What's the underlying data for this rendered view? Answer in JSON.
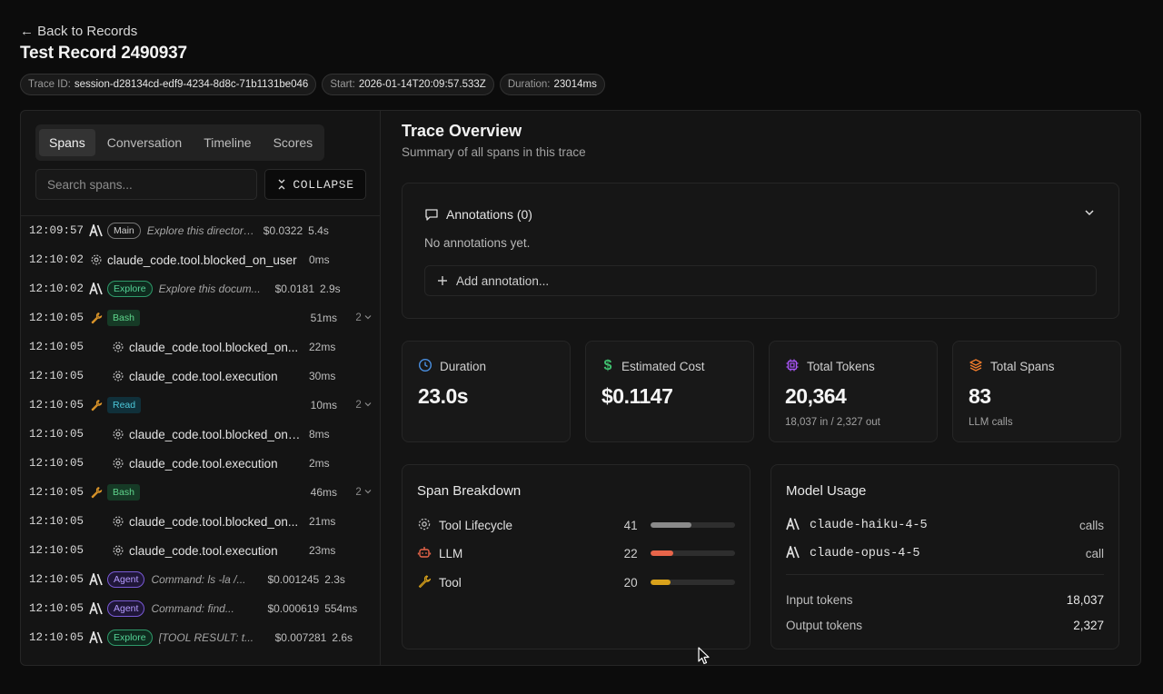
{
  "header": {
    "back_label": "← Back to Records",
    "title": "Test Record 2490937",
    "chips": [
      {
        "label": "Trace ID:",
        "value": "session-d28134cd-edf9-4234-8d8c-71b1131be046"
      },
      {
        "label": "Start:",
        "value": "2026-01-14T20:09:57.533Z"
      },
      {
        "label": "Duration:",
        "value": "23014ms"
      }
    ]
  },
  "left": {
    "tabs": [
      "Spans",
      "Conversation",
      "Timeline",
      "Scores"
    ],
    "search_placeholder": "Search spans...",
    "collapse_label": "COLLAPSE",
    "spans": [
      {
        "time": "12:09:57",
        "icon": "anthropic",
        "badge": "Main",
        "desc": "Explore this directory ...",
        "cost": "$0.0322",
        "dur": "5.4s"
      },
      {
        "time": "12:10:02",
        "icon": "gear",
        "name": "claude_code.tool.blocked_on_user",
        "dur": "0ms"
      },
      {
        "time": "12:10:02",
        "icon": "anthropic",
        "badge": "Explore",
        "desc": "Explore this docum...",
        "cost": "$0.0181",
        "dur": "2.9s"
      },
      {
        "time": "12:10:05",
        "icon": "wrench",
        "badge": "Bash",
        "dur": "51ms",
        "count": "2"
      },
      {
        "time": "12:10:05",
        "icon": "gear",
        "nested": true,
        "name": "claude_code.tool.blocked_on...",
        "dur": "22ms"
      },
      {
        "time": "12:10:05",
        "icon": "gear",
        "nested": true,
        "name": "claude_code.tool.execution",
        "dur": "30ms"
      },
      {
        "time": "12:10:05",
        "icon": "wrench",
        "badge": "Read",
        "dur": "10ms",
        "count": "2"
      },
      {
        "time": "12:10:05",
        "icon": "gear",
        "nested": true,
        "name": "claude_code.tool.blocked_on_...",
        "dur": "8ms"
      },
      {
        "time": "12:10:05",
        "icon": "gear",
        "nested": true,
        "name": "claude_code.tool.execution",
        "dur": "2ms"
      },
      {
        "time": "12:10:05",
        "icon": "wrench",
        "badge": "Bash",
        "dur": "46ms",
        "count": "2"
      },
      {
        "time": "12:10:05",
        "icon": "gear",
        "nested": true,
        "name": "claude_code.tool.blocked_on...",
        "dur": "21ms"
      },
      {
        "time": "12:10:05",
        "icon": "gear",
        "nested": true,
        "name": "claude_code.tool.execution",
        "dur": "23ms"
      },
      {
        "time": "12:10:05",
        "icon": "anthropic",
        "badge": "Agent",
        "desc": "Command: ls -la /...",
        "cost": "$0.001245",
        "dur": "2.3s"
      },
      {
        "time": "12:10:05",
        "icon": "anthropic",
        "badge": "Agent",
        "desc": "Command: find...",
        "cost": "$0.000619",
        "dur": "554ms"
      },
      {
        "time": "12:10:05",
        "icon": "anthropic",
        "badge": "Explore",
        "desc": "[TOOL RESULT: t...",
        "cost": "$0.007281",
        "dur": "2.6s"
      }
    ]
  },
  "overview": {
    "title": "Trace Overview",
    "subtitle": "Summary of all spans in this trace",
    "annotations_label": "Annotations (0)",
    "no_annotations": "No annotations yet.",
    "add_annotation": "Add annotation...",
    "stats": [
      {
        "label": "Duration",
        "value": "23.0s",
        "sub": "",
        "icon": "clock",
        "color": "#4a90e2"
      },
      {
        "label": "Estimated Cost",
        "value": "$0.1147",
        "sub": "",
        "icon": "dollar",
        "color": "#3fbf6e"
      },
      {
        "label": "Total Tokens",
        "value": "20,364",
        "sub": "18,037 in / 2,327 out",
        "icon": "chip",
        "color": "#a855f7"
      },
      {
        "label": "Total Spans",
        "value": "83",
        "sub": "LLM calls",
        "icon": "layers",
        "color": "#f07b2c"
      }
    ],
    "breakdown": {
      "title": "Span Breakdown",
      "items": [
        {
          "name": "Tool Lifecycle",
          "count": "41",
          "fraction": 0.49,
          "color": "#8a8a8a"
        },
        {
          "name": "LLM",
          "count": "22",
          "fraction": 0.27,
          "color": "#e8654a"
        },
        {
          "name": "Tool",
          "count": "20",
          "fraction": 0.24,
          "color": "#d9a21b"
        }
      ]
    },
    "models": {
      "title": "Model Usage",
      "items": [
        {
          "name": "claude-haiku-4-5",
          "calls": "calls"
        },
        {
          "name": "claude-opus-4-5",
          "calls": "call"
        }
      ],
      "tokens": [
        {
          "label": "Input tokens",
          "value": "18,037"
        },
        {
          "label": "Output tokens",
          "value": "2,327"
        }
      ]
    }
  }
}
